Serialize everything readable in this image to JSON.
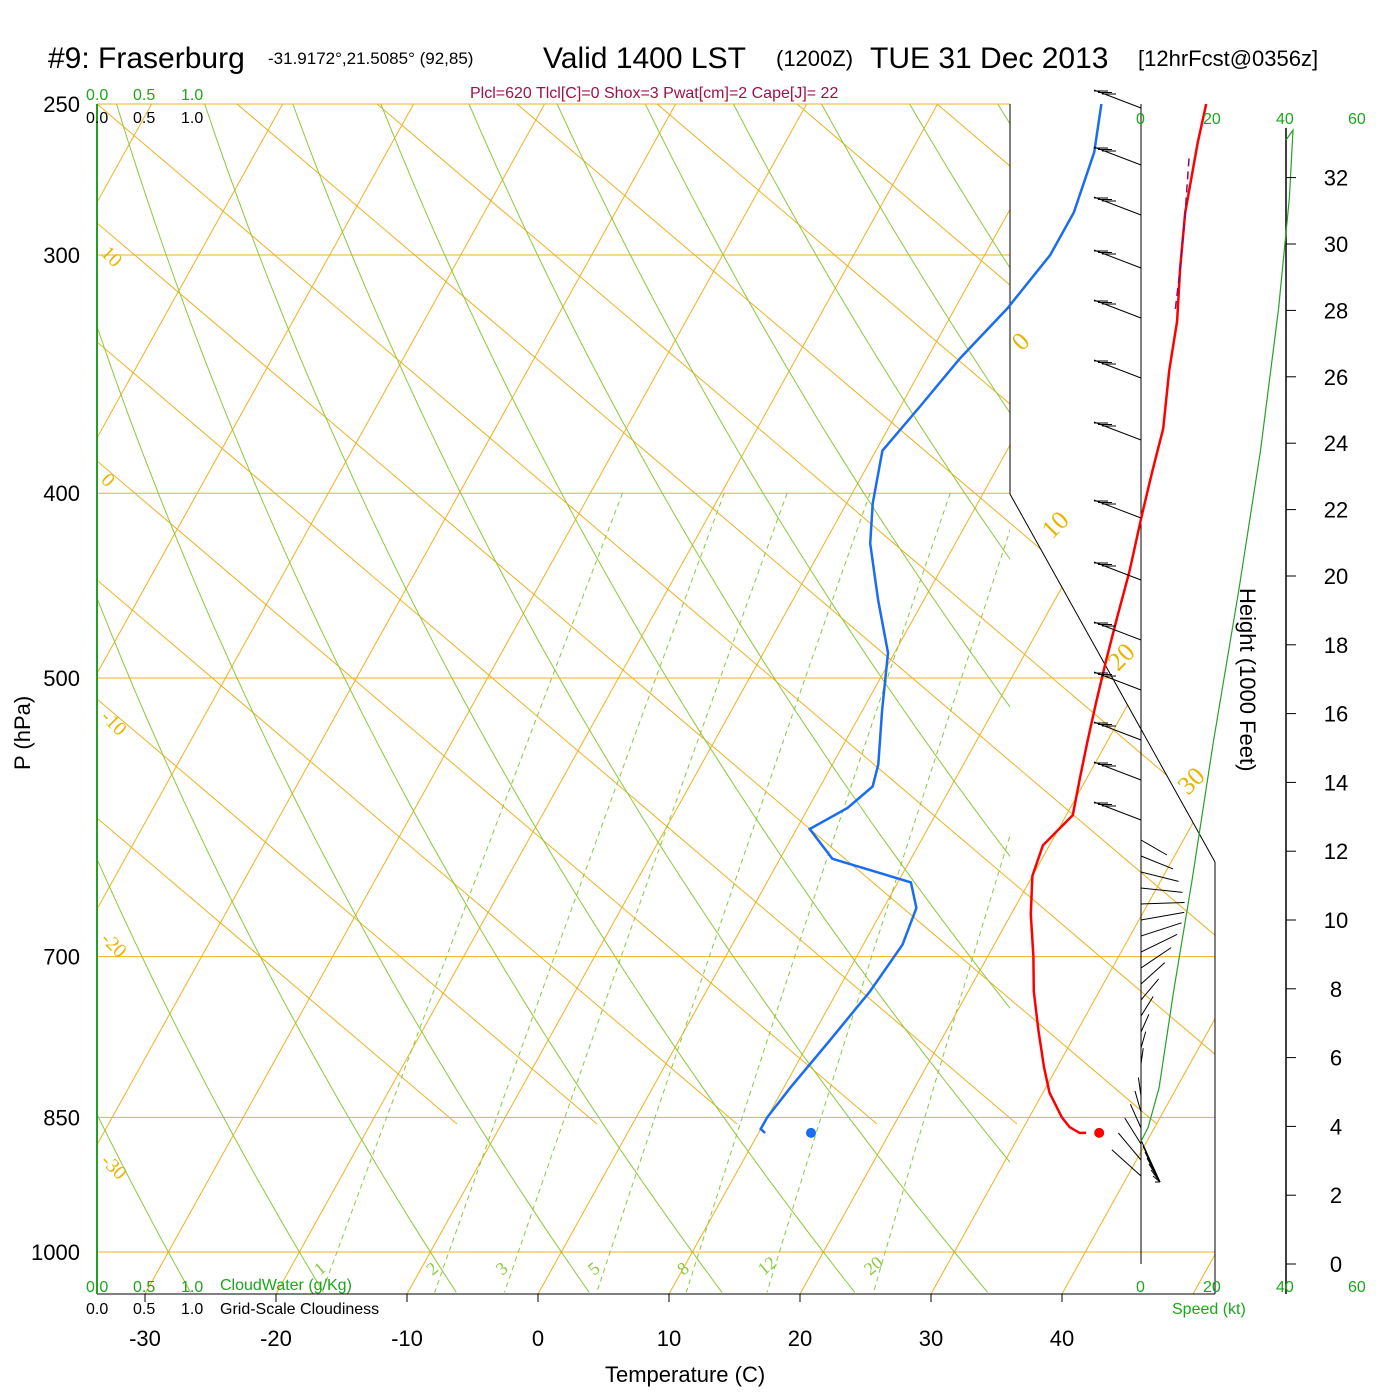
{
  "header": {
    "station": "#9: Fraserburg",
    "coords": "-31.9172°,21.5085° (92,85)",
    "valid": "Valid 1400 LST",
    "zulu": "(1200Z)",
    "date": "TUE 31 Dec 2013",
    "forecast": "[12hrFcst@0356z]",
    "indices": "Plcl=620 Tlcl[C]=0 Shox=3 Pwat[cm]=2 Cape[J]= 22"
  },
  "left_scale": {
    "cloudwater_ticks_top": [
      "0.0",
      "0.5",
      "1.0"
    ],
    "cloudiness_ticks_top": [
      "0.0",
      "0.5",
      "1.0"
    ],
    "cloudwater_ticks_bottom": [
      "0.0",
      "0.5",
      "1.0"
    ],
    "cloudiness_ticks_bottom": [
      "0.0",
      "0.5",
      "1.0"
    ],
    "cloudwater_label": "CloudWater (g/Kg)",
    "cloudiness_label": "Grid-Scale Cloudiness"
  },
  "speed_scale": {
    "ticks_top": [
      "0",
      "20",
      "40",
      "60"
    ],
    "ticks_bottom": [
      "0",
      "20",
      "40",
      "60"
    ],
    "label": "Speed (kt)"
  },
  "colors": {
    "temperature": "#ff0000",
    "dewpoint": "#1a6cf0",
    "isotherm": "#f0b020",
    "adiabat": "#8cc83c",
    "mixing_ratio": "#8cc83c",
    "parcel": "#8a0a6a",
    "speed_profile": "#28a028",
    "green_text": "#1aa81a"
  },
  "chart_data": {
    "type": "line",
    "title": "#9: Fraserburg",
    "xlabel": "Temperature (C)",
    "ylabel": "P (hPa)",
    "y2label": "Height (1000 Feet)",
    "x_ticks": [
      -30,
      -20,
      -10,
      0,
      10,
      20,
      30,
      40
    ],
    "y_ticks": [
      250,
      300,
      400,
      500,
      700,
      850,
      1000
    ],
    "height_ticks": [
      0,
      2,
      4,
      6,
      8,
      10,
      12,
      14,
      16,
      18,
      20,
      22,
      24,
      26,
      28,
      30,
      32
    ],
    "grid": true,
    "isotherm_labels": [
      "0",
      "10",
      "20",
      "30",
      "10",
      "0",
      "-10",
      "-20",
      "-30"
    ],
    "mixing_ratio_labels": [
      "1",
      "2",
      "3",
      "5",
      "8",
      "12",
      "20"
    ],
    "series": [
      {
        "name": "Temperature",
        "points": [
          [
            0.5,
            250
          ],
          [
            1.5,
            262
          ],
          [
            3.5,
            285
          ],
          [
            5.5,
            305
          ],
          [
            7.5,
            325
          ],
          [
            9.0,
            345
          ],
          [
            11.0,
            370
          ],
          [
            12.0,
            390
          ],
          [
            13.0,
            410
          ],
          [
            14.5,
            440
          ],
          [
            15.5,
            465
          ],
          [
            16.5,
            490
          ],
          [
            17.5,
            515
          ],
          [
            18.5,
            540
          ],
          [
            19.5,
            565
          ],
          [
            20.5,
            590
          ],
          [
            19.5,
            612
          ],
          [
            20.0,
            635
          ],
          [
            21.5,
            665
          ],
          [
            23.5,
            700
          ],
          [
            25.0,
            730
          ],
          [
            27.0,
            765
          ],
          [
            29.0,
            800
          ],
          [
            30.5,
            825
          ],
          [
            32.5,
            850
          ],
          [
            33.5,
            860
          ],
          [
            34.5,
            866
          ],
          [
            35.0,
            866
          ]
        ]
      },
      {
        "name": "Dewpoint",
        "points": [
          [
            -7.5,
            250
          ],
          [
            -6.0,
            265
          ],
          [
            -5.0,
            285
          ],
          [
            -5.0,
            300
          ],
          [
            -6.0,
            320
          ],
          [
            -7.5,
            340
          ],
          [
            -8.5,
            360
          ],
          [
            -9.5,
            380
          ],
          [
            -8.0,
            405
          ],
          [
            -6.5,
            425
          ],
          [
            -3.5,
            455
          ],
          [
            -0.5,
            485
          ],
          [
            1.5,
            520
          ],
          [
            3.5,
            555
          ],
          [
            4.0,
            570
          ],
          [
            3.0,
            585
          ],
          [
            1.0,
            600
          ],
          [
            4.0,
            622
          ],
          [
            11.0,
            640
          ],
          [
            12.5,
            660
          ],
          [
            13.0,
            690
          ],
          [
            12.5,
            730
          ],
          [
            11.5,
            775
          ],
          [
            10.5,
            820
          ],
          [
            10.0,
            850
          ],
          [
            10.0,
            862
          ],
          [
            10.5,
            866
          ]
        ]
      },
      {
        "name": "Parcel",
        "points": [
          [
            1.5,
            267
          ],
          [
            3.5,
            285
          ],
          [
            5.5,
            305
          ],
          [
            7.0,
            322
          ]
        ]
      }
    ],
    "surface_temperature": 36,
    "surface_dewpoint": 14,
    "wind_speed_profile_kt": [
      [
        0,
        875
      ],
      [
        2,
        860
      ],
      [
        5,
        820
      ],
      [
        9,
        730
      ],
      [
        14,
        640
      ],
      [
        20,
        540
      ],
      [
        27,
        450
      ],
      [
        33,
        380
      ],
      [
        38,
        320
      ],
      [
        41,
        280
      ],
      [
        42,
        258
      ]
    ]
  }
}
